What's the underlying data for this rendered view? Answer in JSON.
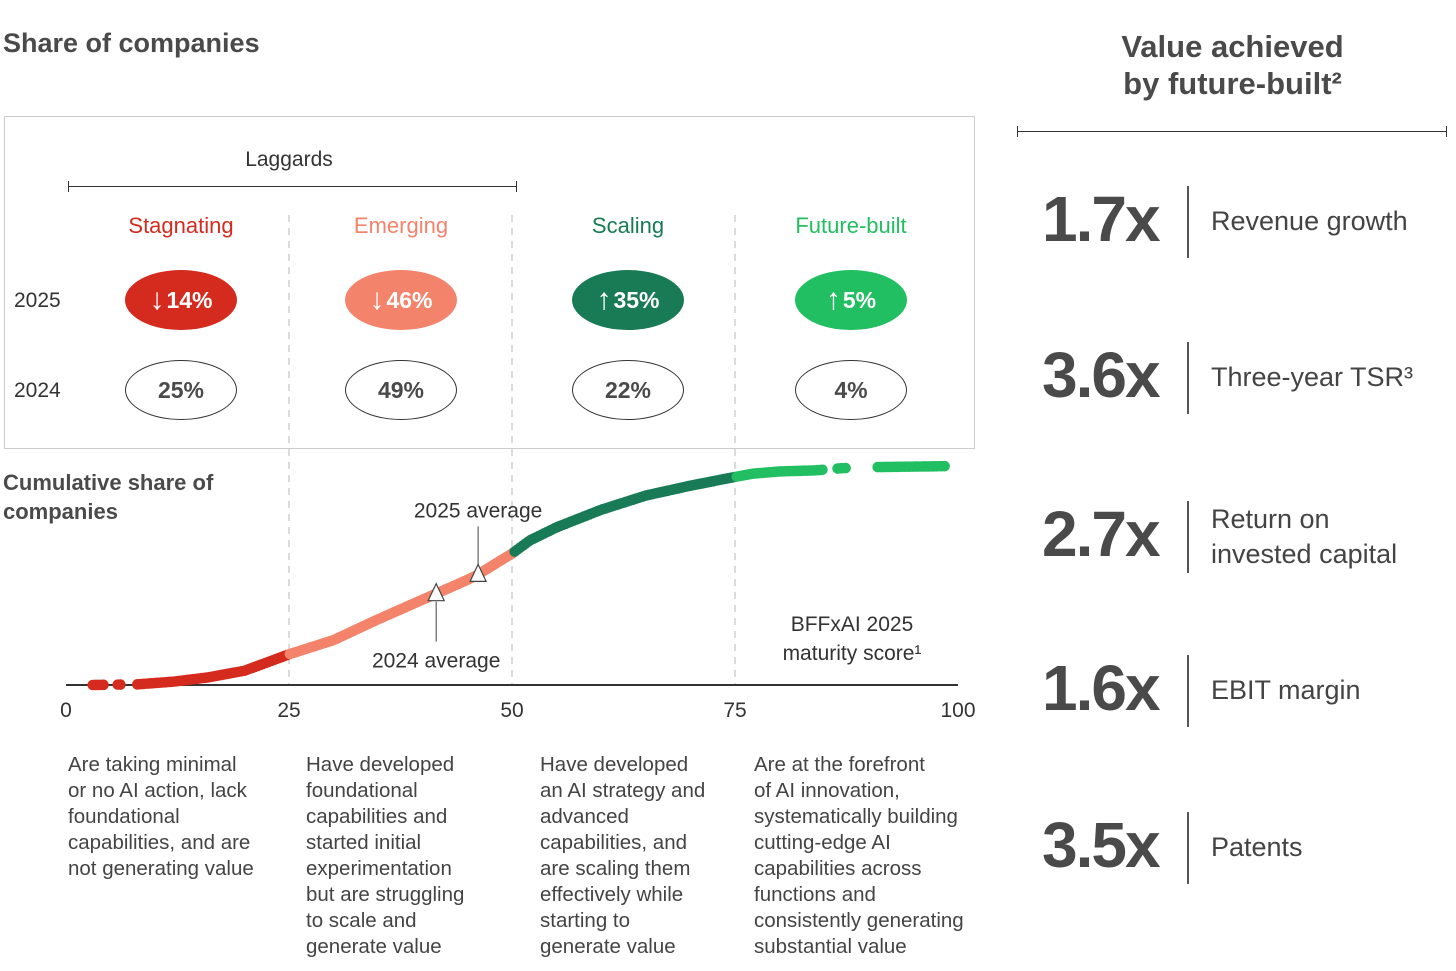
{
  "header": {
    "left_title": "Share of companies",
    "right_title_line1": "Value achieved",
    "right_title_line2": "by future-built²"
  },
  "laggards_label": "Laggards",
  "years": {
    "y2025": "2025",
    "y2024": "2024"
  },
  "tiers": [
    {
      "name": "Stagnating",
      "color": "#d52b1e",
      "v2025": "14%",
      "dir": "down",
      "v2024": "25%",
      "desc": [
        "Are taking minimal",
        "or no AI action, lack",
        "foundational",
        "capabilities, and are",
        "not generating value"
      ]
    },
    {
      "name": "Emerging",
      "color": "#f4836b",
      "v2025": "46%",
      "dir": "down",
      "v2024": "49%",
      "desc": [
        "Have developed",
        "foundational",
        "capabilities and",
        "started initial",
        "experimentation",
        "but are struggling",
        "to scale and",
        "generate value"
      ]
    },
    {
      "name": "Scaling",
      "color": "#197a56",
      "v2025": "35%",
      "dir": "up",
      "v2024": "22%",
      "desc": [
        "Have developed",
        "an AI strategy and",
        "advanced",
        "capabilities, and",
        "are scaling them",
        "effectively while",
        "starting to",
        "generate value"
      ]
    },
    {
      "name": "Future-built",
      "color": "#21bf61",
      "v2025": "5%",
      "dir": "up",
      "v2024": "4%",
      "desc": [
        "Are at the forefront",
        "of AI innovation,",
        "systematically building",
        "cutting-edge AI",
        "capabilities across",
        "functions and",
        "consistently generating",
        "substantial value"
      ]
    }
  ],
  "arrows": {
    "up": "↑",
    "down": "↓"
  },
  "chart_data": {
    "type": "scatter",
    "ylabel": "Cumulative share of companies",
    "xlabel": "BFFxAI 2025 maturity score¹",
    "xlabel_line1": "BFFxAI 2025",
    "xlabel_line2": "maturity score¹",
    "xlim": [
      0,
      100
    ],
    "ylim": [
      0,
      100
    ],
    "xticks": [
      "0",
      "25",
      "50",
      "75",
      "100"
    ],
    "curve": [
      [
        3,
        0
      ],
      [
        8,
        0.3
      ],
      [
        12,
        1.5
      ],
      [
        16,
        3.5
      ],
      [
        20,
        6.5
      ],
      [
        25,
        14
      ],
      [
        30,
        20.5
      ],
      [
        35,
        30
      ],
      [
        40,
        39
      ],
      [
        45,
        48
      ],
      [
        46,
        50
      ],
      [
        50,
        60
      ],
      [
        52,
        66
      ],
      [
        55,
        72
      ],
      [
        60,
        80
      ],
      [
        65,
        86.5
      ],
      [
        70,
        91
      ],
      [
        75,
        95
      ],
      [
        77,
        96.5
      ],
      [
        80,
        97.5
      ],
      [
        84,
        98
      ],
      [
        87,
        99
      ],
      [
        91,
        99.5
      ],
      [
        100,
        100
      ]
    ],
    "dot_ranges": [
      [
        3,
        4.2
      ],
      [
        5.8,
        6.3
      ],
      [
        8,
        85
      ],
      [
        86.5,
        87.5
      ],
      [
        91,
        98.6
      ]
    ],
    "tier_bounds": [
      25,
      50,
      75
    ],
    "markers": [
      {
        "label": "2024 average",
        "x": 41.5
      },
      {
        "label": "2025 average",
        "x": 46.2
      }
    ]
  },
  "metrics": [
    {
      "value": "1.7x",
      "label": [
        "Revenue growth"
      ]
    },
    {
      "value": "3.6x",
      "label": [
        "Three-year TSR³"
      ]
    },
    {
      "value": "2.7x",
      "label": [
        "Return on",
        "invested capital"
      ]
    },
    {
      "value": "1.6x",
      "label": [
        "EBIT margin"
      ]
    },
    {
      "value": "3.5x",
      "label": [
        "Patents"
      ]
    }
  ]
}
